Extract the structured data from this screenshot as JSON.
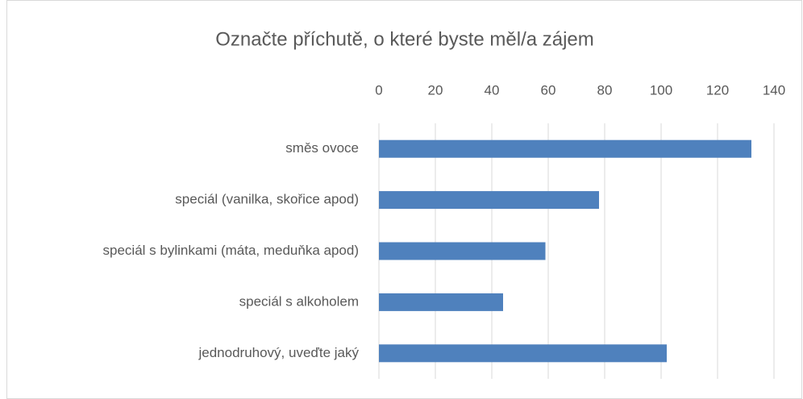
{
  "chart_data": {
    "type": "barh",
    "title": "Označte příchutě, o které byste měl/a zájem",
    "categories": [
      "směs ovoce",
      "speciál (vanilka, skořice apod)",
      "speciál s bylinkami (máta, meduňka apod)",
      "speciál s alkoholem",
      "jednodruhový, uveďte jaký"
    ],
    "values": [
      132,
      78,
      59,
      44,
      102
    ],
    "color": "#4f81bd",
    "xlim": [
      0,
      140
    ],
    "xticks": [
      0,
      20,
      40,
      60,
      80,
      100,
      120,
      140
    ],
    "grid": true
  }
}
